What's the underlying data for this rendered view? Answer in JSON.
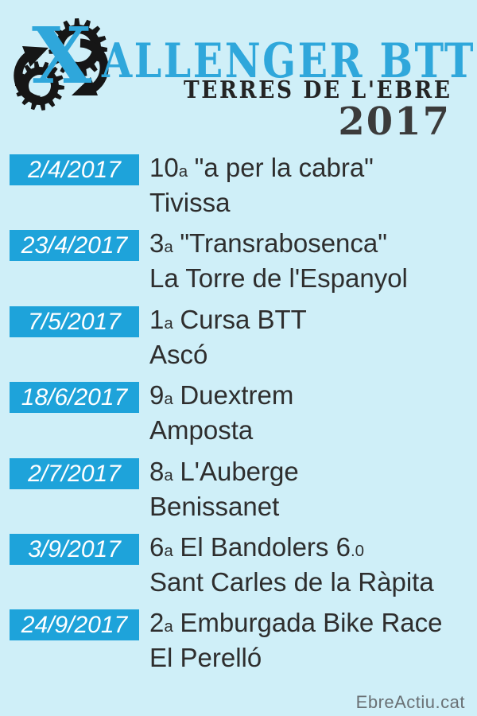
{
  "header": {
    "brand_x": "X",
    "brand_rest": "ALLENGER BTT",
    "subtitle": "TERRES DE L'EBRE",
    "year": "2017"
  },
  "events": [
    {
      "date": "2/4/2017",
      "num": "10",
      "ord": "a",
      "title": "\"a per la cabra\"",
      "location": "Tivissa"
    },
    {
      "date": "23/4/2017",
      "num": "3",
      "ord": "a",
      "title": "\"Transrabosenca\"",
      "location": "La Torre de l'Espanyol"
    },
    {
      "date": "7/5/2017",
      "num": "1",
      "ord": "a",
      "title": "Cursa BTT",
      "location": "Ascó"
    },
    {
      "date": "18/6/2017",
      "num": "9",
      "ord": "a",
      "title": "Duextrem",
      "location": "Amposta"
    },
    {
      "date": "2/7/2017",
      "num": "8",
      "ord": "a",
      "title": "L'Auberge",
      "location": "Benissanet"
    },
    {
      "date": "3/9/2017",
      "num": "6",
      "ord": "a",
      "title": "El Bandolers 6",
      "title_small": ".0",
      "location": "Sant Carles de la Ràpita"
    },
    {
      "date": "24/9/2017",
      "num": "2",
      "ord": "a",
      "title": "Emburgada Bike Race",
      "location": "El Perelló"
    }
  ],
  "footer": {
    "credit": "EbreActiu.cat"
  },
  "icons": {
    "logo": "gear-and-cycle-arrows-icon"
  },
  "colors": {
    "background": "#CFEFF8",
    "badge_blue": "#1EA3DA",
    "brand_blue": "#2FA7DB",
    "text_dark": "#2E2E2E",
    "subtitle_black": "#242424",
    "credit_gray": "#6A7175"
  }
}
